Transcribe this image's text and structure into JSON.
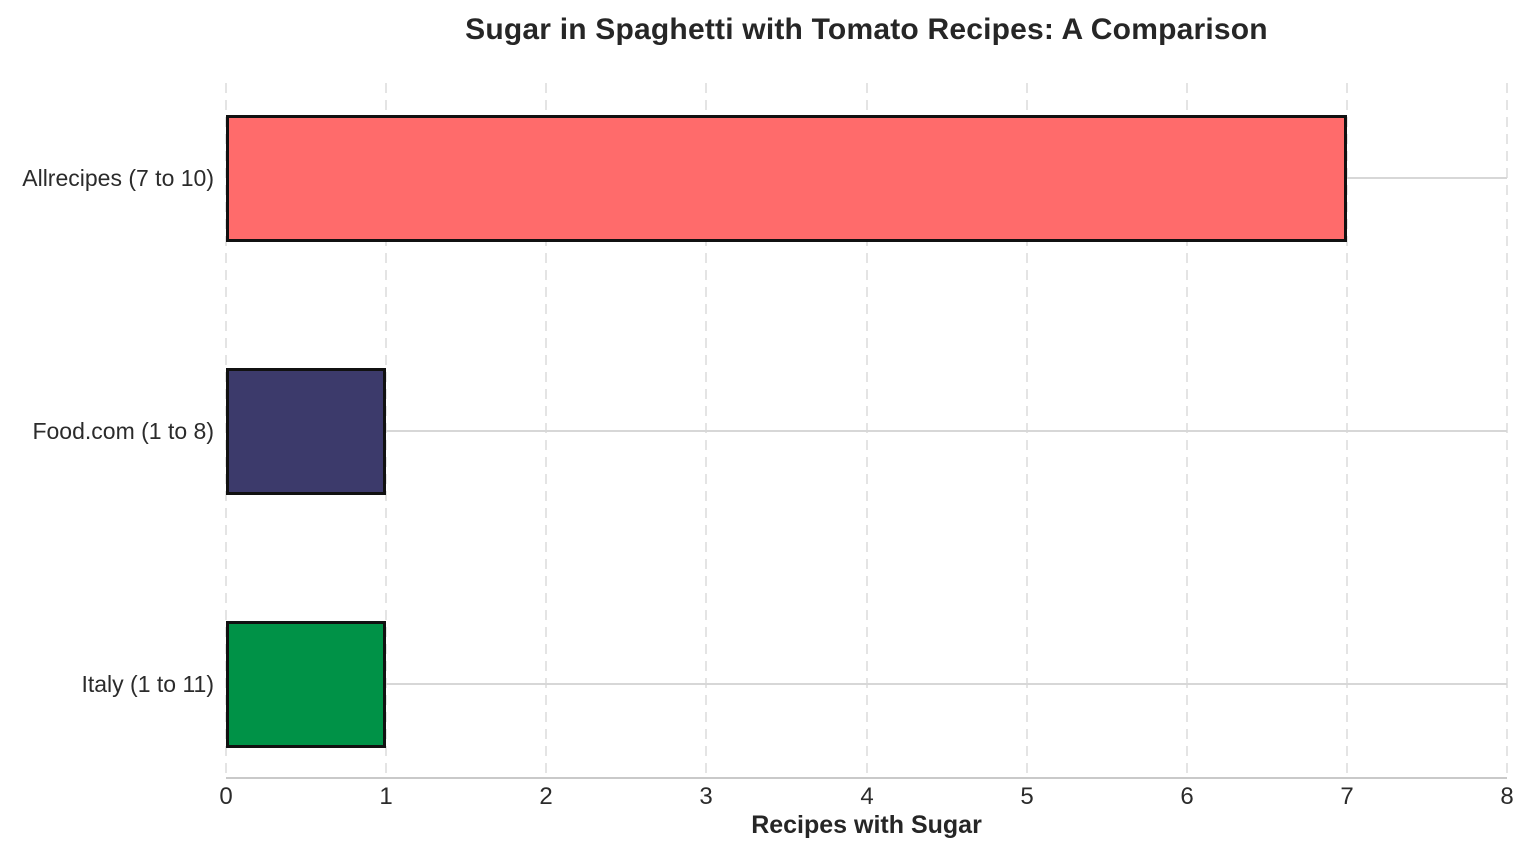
{
  "chart_data": {
    "type": "bar",
    "orientation": "horizontal",
    "title": "Sugar in Spaghetti with Tomato Recipes: A Comparison",
    "xlabel": "Recipes with Sugar",
    "ylabel": "",
    "categories": [
      "Allrecipes (7 to 10)",
      "Food.com (1 to 8)",
      "Italy (1 to 11)"
    ],
    "values": [
      7,
      1,
      1
    ],
    "bar_colors": [
      "#FF6B6B",
      "#3C3A6B",
      "#009247"
    ],
    "bar_edge_color": "#111111",
    "xlim": [
      0,
      8
    ],
    "x_ticks": [
      0,
      1,
      2,
      3,
      4,
      5,
      6,
      7,
      8
    ],
    "grid": {
      "vertical": "dashed",
      "horizontal": "solid",
      "vertical_color": "#e4e4e4",
      "horizontal_color": "#d7d7d7"
    },
    "legend": "none",
    "background": "#ffffff"
  }
}
